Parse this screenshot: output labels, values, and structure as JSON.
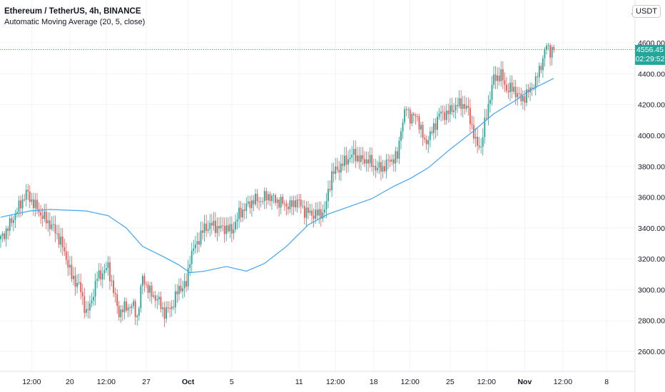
{
  "header": {
    "symbol_title": "Ethereum / TetherUS, 4h, BINANCE",
    "indicator": "Automatic Moving Average (20, 5, close)",
    "currency_button": "USDT",
    "currency_prefix": "∠"
  },
  "current": {
    "price": "4556.45",
    "price_value": 4556.45,
    "countdown": "02:29:52"
  },
  "colors": {
    "up": "#26a69a",
    "down": "#ef5350",
    "ma": "#42a5f5",
    "grid": "#f0f3fa",
    "tag": "#26a69a"
  },
  "chart_data": {
    "type": "candlestick",
    "title": "Ethereum / TetherUS, 4h, BINANCE",
    "ylim": [
      2520,
      4700
    ],
    "y_ticks": [
      2600,
      2800,
      3000,
      3200,
      3400,
      3600,
      3800,
      4000,
      4200,
      4400,
      4600
    ],
    "y_tick_labels": [
      "2600.00",
      "2800.00",
      "3000.00",
      "3200.00",
      "3400.00",
      "3600.00",
      "3800.00",
      "4000.00",
      "4200.00",
      "4400.00",
      "4600.00"
    ],
    "x_ticks": [
      {
        "bar": 17,
        "label": "12:00"
      },
      {
        "bar": 38,
        "label": "20"
      },
      {
        "bar": 58,
        "label": "12:00"
      },
      {
        "bar": 80,
        "label": "27"
      },
      {
        "bar": 103,
        "label": "Oct",
        "bold": true
      },
      {
        "bar": 127,
        "label": "5"
      },
      {
        "bar": 164,
        "label": "11"
      },
      {
        "bar": 184,
        "label": "12:00"
      },
      {
        "bar": 205,
        "label": "18"
      },
      {
        "bar": 225,
        "label": "12:00"
      },
      {
        "bar": 247,
        "label": "25"
      },
      {
        "bar": 267,
        "label": "12:00"
      },
      {
        "bar": 288,
        "label": "Nov",
        "bold": true
      },
      {
        "bar": 309,
        "label": "12:00"
      },
      {
        "bar": 333,
        "label": "8"
      }
    ],
    "close_path": [
      [
        0,
        3330
      ],
      [
        4,
        3400
      ],
      [
        8,
        3490
      ],
      [
        12,
        3580
      ],
      [
        14,
        3630
      ],
      [
        18,
        3560
      ],
      [
        22,
        3490
      ],
      [
        25,
        3450
      ],
      [
        29,
        3400
      ],
      [
        33,
        3310
      ],
      [
        37,
        3170
      ],
      [
        39,
        3080
      ],
      [
        43,
        3030
      ],
      [
        47,
        2850
      ],
      [
        49,
        2890
      ],
      [
        53,
        3080
      ],
      [
        57,
        3120
      ],
      [
        59,
        3150
      ],
      [
        63,
        2940
      ],
      [
        65,
        2850
      ],
      [
        69,
        2890
      ],
      [
        73,
        2890
      ],
      [
        75,
        2820
      ],
      [
        78,
        3080
      ],
      [
        82,
        2980
      ],
      [
        86,
        2940
      ],
      [
        90,
        2850
      ],
      [
        94,
        2890
      ],
      [
        98,
        3010
      ],
      [
        102,
        3030
      ],
      [
        104,
        3210
      ],
      [
        108,
        3310
      ],
      [
        112,
        3400
      ],
      [
        116,
        3420
      ],
      [
        120,
        3400
      ],
      [
        124,
        3400
      ],
      [
        127,
        3380
      ],
      [
        131,
        3490
      ],
      [
        135,
        3540
      ],
      [
        139,
        3580
      ],
      [
        143,
        3580
      ],
      [
        147,
        3610
      ],
      [
        151,
        3580
      ],
      [
        155,
        3560
      ],
      [
        159,
        3540
      ],
      [
        163,
        3580
      ],
      [
        167,
        3510
      ],
      [
        171,
        3490
      ],
      [
        175,
        3490
      ],
      [
        178,
        3510
      ],
      [
        182,
        3750
      ],
      [
        186,
        3790
      ],
      [
        190,
        3840
      ],
      [
        194,
        3880
      ],
      [
        198,
        3840
      ],
      [
        202,
        3840
      ],
      [
        206,
        3790
      ],
      [
        210,
        3790
      ],
      [
        214,
        3840
      ],
      [
        218,
        3860
      ],
      [
        220,
        4050
      ],
      [
        223,
        4180
      ],
      [
        225,
        4120
      ],
      [
        229,
        4120
      ],
      [
        233,
        3950
      ],
      [
        237,
        4020
      ],
      [
        241,
        4140
      ],
      [
        245,
        4140
      ],
      [
        249,
        4180
      ],
      [
        253,
        4210
      ],
      [
        257,
        4160
      ],
      [
        261,
        3950
      ],
      [
        264,
        3930
      ],
      [
        267,
        4140
      ],
      [
        271,
        4370
      ],
      [
        275,
        4390
      ],
      [
        278,
        4300
      ],
      [
        282,
        4300
      ],
      [
        286,
        4230
      ],
      [
        290,
        4280
      ],
      [
        294,
        4350
      ],
      [
        297,
        4460
      ],
      [
        300,
        4580
      ],
      [
        302,
        4550
      ],
      [
        304,
        4556.45
      ]
    ],
    "moving_average": {
      "name": "Automatic Moving Average (20, 5, close)",
      "points": [
        [
          0,
          3470
        ],
        [
          16,
          3510
        ],
        [
          27,
          3520
        ],
        [
          47,
          3510
        ],
        [
          59,
          3480
        ],
        [
          69,
          3400
        ],
        [
          78,
          3280
        ],
        [
          90,
          3210
        ],
        [
          98,
          3160
        ],
        [
          104,
          3110
        ],
        [
          112,
          3120
        ],
        [
          124,
          3150
        ],
        [
          135,
          3120
        ],
        [
          145,
          3170
        ],
        [
          157,
          3280
        ],
        [
          169,
          3420
        ],
        [
          180,
          3490
        ],
        [
          192,
          3540
        ],
        [
          204,
          3590
        ],
        [
          216,
          3670
        ],
        [
          225,
          3720
        ],
        [
          235,
          3790
        ],
        [
          247,
          3910
        ],
        [
          259,
          4020
        ],
        [
          271,
          4140
        ],
        [
          282,
          4220
        ],
        [
          292,
          4300
        ],
        [
          304,
          4370
        ]
      ]
    }
  }
}
